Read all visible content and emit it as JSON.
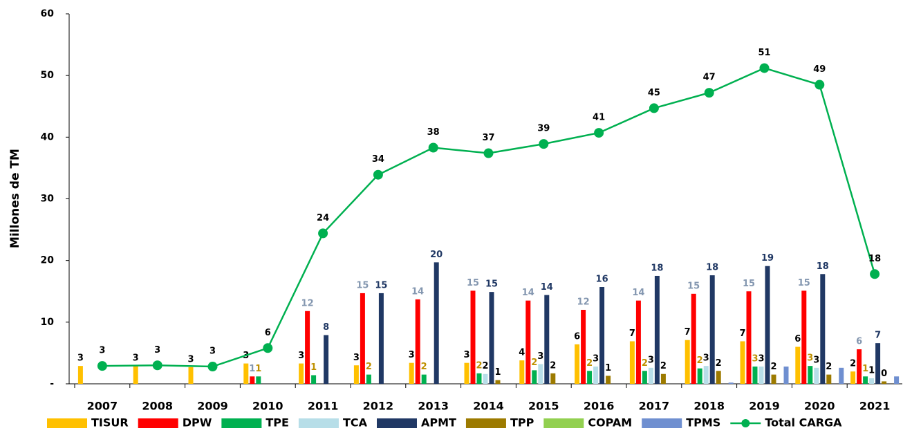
{
  "chart_data": {
    "type": "bar",
    "y_label": "Millones de TM",
    "categories": [
      "2007",
      "2008",
      "2009",
      "2010",
      "2011",
      "2012",
      "2013",
      "2014",
      "2015",
      "2016",
      "2017",
      "2018",
      "2019",
      "2020",
      "2021"
    ],
    "ylim": [
      0,
      60
    ],
    "yticks": [
      {
        "value": 0,
        "label": "-"
      },
      10,
      20,
      30,
      40,
      50,
      60
    ],
    "series": [
      {
        "name": "TISUR",
        "color": "#FFC000",
        "label_color": "#000000",
        "values": [
          2.9,
          2.9,
          2.7,
          3.3,
          3.3,
          3.0,
          3.4,
          3.4,
          3.8,
          6.4,
          6.9,
          7.1,
          6.9,
          6.0,
          2.0
        ],
        "value_labels": [
          "3",
          "3",
          "3",
          "3",
          "3",
          "3",
          "3",
          "3",
          "4",
          "6",
          "7",
          "7",
          "7",
          "6",
          "2"
        ]
      },
      {
        "name": "DPW",
        "color": "#FF0000",
        "label_color": "#8497B0",
        "values": [
          null,
          null,
          null,
          1.2,
          11.8,
          14.7,
          13.7,
          15.1,
          13.5,
          12.0,
          13.5,
          14.6,
          15.0,
          15.1,
          5.6
        ],
        "value_labels": [
          null,
          null,
          null,
          "1",
          "12",
          "15",
          "14",
          "15",
          "14",
          "12",
          "14",
          "15",
          "15",
          "15",
          "6"
        ]
      },
      {
        "name": "TPE",
        "color": "#00B050",
        "label_color": "#BF9000",
        "values": [
          null,
          null,
          null,
          1.2,
          1.4,
          1.5,
          1.5,
          1.7,
          2.2,
          2.1,
          2.1,
          2.5,
          2.8,
          2.9,
          1.2
        ],
        "value_labels": [
          null,
          null,
          null,
          "1",
          "1",
          "2",
          "2",
          "2",
          "2",
          "2",
          "2",
          "2",
          "3",
          "3",
          "1"
        ]
      },
      {
        "name": "TCA",
        "color": "#B7DEE8",
        "label_color": "#000000",
        "values": [
          null,
          null,
          null,
          null,
          null,
          null,
          null,
          1.6,
          3.2,
          2.8,
          2.6,
          2.9,
          2.8,
          2.6,
          0.9
        ],
        "value_labels": [
          null,
          null,
          null,
          null,
          null,
          null,
          null,
          "2",
          "3",
          "3",
          "3",
          "3",
          "3",
          "3",
          "1"
        ]
      },
      {
        "name": "APMT",
        "color": "#203864",
        "label_color": "#203864",
        "values": [
          null,
          null,
          null,
          null,
          7.9,
          14.7,
          19.7,
          14.9,
          14.4,
          15.7,
          17.5,
          17.6,
          19.1,
          17.8,
          6.6
        ],
        "value_labels": [
          null,
          null,
          null,
          null,
          "8",
          "15",
          "20",
          "15",
          "14",
          "16",
          "18",
          "18",
          "19",
          "18",
          "7"
        ]
      },
      {
        "name": "TPP",
        "color": "#9C7A00",
        "label_color": "#000000",
        "values": [
          null,
          null,
          null,
          null,
          null,
          null,
          null,
          0.6,
          1.7,
          1.3,
          1.6,
          2.1,
          1.5,
          1.5,
          0.4
        ],
        "value_labels": [
          null,
          null,
          null,
          null,
          null,
          null,
          null,
          "1",
          "2",
          "1",
          "2",
          "2",
          "2",
          "2",
          "0"
        ]
      },
      {
        "name": "COPAM",
        "color": "#92D050",
        "label_color": "#000000",
        "values": [
          null,
          null,
          null,
          null,
          null,
          null,
          null,
          null,
          null,
          null,
          null,
          null,
          null,
          null,
          null
        ]
      },
      {
        "name": "TPMS",
        "color": "#6F8FD0",
        "label_color": "#000000",
        "values": [
          null,
          null,
          null,
          null,
          null,
          null,
          null,
          null,
          null,
          null,
          null,
          0.2,
          2.8,
          2.6,
          1.2
        ]
      },
      {
        "name": "Total CARGA",
        "type": "line",
        "color": "#00B050",
        "label_color": "#000000",
        "values": [
          2.9,
          3.0,
          2.8,
          5.8,
          24.4,
          33.9,
          38.3,
          37.4,
          38.9,
          40.7,
          44.7,
          47.2,
          51.2,
          48.5,
          17.8
        ],
        "value_labels": [
          "3",
          "3",
          "3",
          "6",
          "24",
          "34",
          "38",
          "37",
          "39",
          "41",
          "45",
          "47",
          "51",
          "49",
          "18"
        ]
      }
    ]
  }
}
